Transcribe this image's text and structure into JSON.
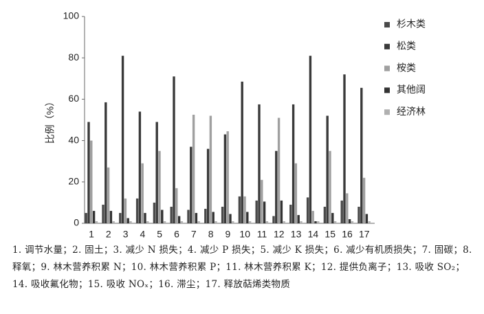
{
  "chart_data": {
    "type": "bar",
    "y_label": "比例（%）",
    "categories": [
      "1",
      "2",
      "3",
      "4",
      "5",
      "6",
      "7",
      "8",
      "9",
      "10",
      "11",
      "12",
      "13",
      "14",
      "15",
      "16",
      "17"
    ],
    "series": [
      {
        "name": "杉木类",
        "color": "#4a4a4a",
        "values": [
          5,
          9,
          5,
          12,
          10,
          8,
          6.5,
          7,
          8,
          13,
          11,
          3.5,
          9,
          12.5,
          8,
          11,
          8
        ]
      },
      {
        "name": "松类",
        "color": "#3a3a3a",
        "values": [
          49,
          58.5,
          81,
          54,
          49,
          71,
          37,
          36,
          43,
          68.5,
          57.5,
          35,
          57.5,
          81,
          52,
          72,
          65.5
        ]
      },
      {
        "name": "桉类",
        "color": "#a0a0a0",
        "values": [
          40,
          27,
          12,
          29,
          35,
          17,
          52.5,
          52,
          44.5,
          13,
          21,
          51,
          29,
          6,
          35,
          14.5,
          22
        ]
      },
      {
        "name": "其他阔",
        "color": "#333333",
        "values": [
          6,
          6,
          2.5,
          5,
          6.5,
          3.5,
          5,
          5.5,
          4.5,
          5.5,
          10.5,
          11,
          4,
          1,
          5,
          2,
          4.5
        ]
      },
      {
        "name": "经济林",
        "color": "#b0b0b0",
        "values": [
          1,
          1,
          1,
          1,
          1,
          1,
          1,
          1,
          1,
          1,
          1,
          1,
          1,
          1,
          1,
          1,
          1
        ]
      }
    ],
    "ylim": [
      0,
      100
    ],
    "yticks": [
      0,
      20,
      40,
      60,
      80,
      100
    ],
    "legend": "right",
    "caption": "1. 调节水量；2. 固土；3. 减少 N 损失；4. 减少 P 损失；5. 减少 K 损失；6. 减少有机质损失；7. 固碳；8. 释氧；9. 林木营养积累 N；10. 林木营养积累 P；11. 林木营养积累 K；12. 提供负离子；13. 吸收 SO₂；14. 吸收氟化物；15. 吸收 NOₓ；16. 滞尘；17. 释放萜烯类物质"
  }
}
